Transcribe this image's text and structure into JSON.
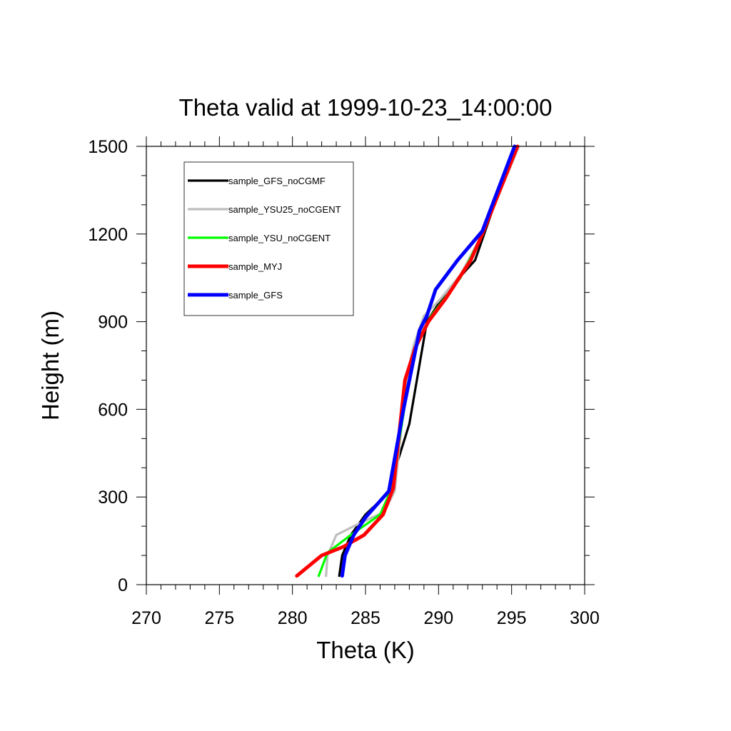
{
  "chart_data": {
    "type": "line",
    "title": "Theta valid at 1999-10-23_14:00:00",
    "xlabel": "Theta (K)",
    "ylabel": "Height (m)",
    "xlim": [
      270,
      300
    ],
    "ylim": [
      0,
      1500
    ],
    "x_ticks": [
      "270",
      "275",
      "280",
      "285",
      "290",
      "295",
      "300"
    ],
    "y_ticks": [
      "0",
      "300",
      "600",
      "900",
      "1200",
      "1500"
    ],
    "x_minor_step": 1,
    "y_minor_step": 100,
    "grid": false,
    "legend_position": "top-left",
    "series": [
      {
        "name": "sample_GFS_noCGMF",
        "color": "#000000",
        "x": [
          283.2,
          283.4,
          284.0,
          285.0,
          286.5,
          288.0,
          289.2,
          290.5,
          292.5,
          295.2
        ],
        "y": [
          30,
          100,
          170,
          240,
          310,
          550,
          900,
          1000,
          1110,
          1500
        ]
      },
      {
        "name": "sample_YSU25_noCGENT",
        "color": "#bebebe",
        "x": [
          282.3,
          282.4,
          283.0,
          284.2,
          286.3,
          287.0,
          287.8,
          288.3,
          289.0,
          290.0,
          291.5,
          293.0,
          295.5
        ],
        "y": [
          30,
          100,
          170,
          200,
          250,
          320,
          700,
          820,
          920,
          970,
          1060,
          1200,
          1500
        ]
      },
      {
        "name": "sample_YSU_noCGENT",
        "color": "#00ff00",
        "x": [
          281.8,
          282.4,
          284.0,
          286.0,
          286.8,
          287.9,
          288.5,
          289.5,
          291.5,
          293.0,
          295.4
        ],
        "y": [
          30,
          110,
          170,
          240,
          330,
          680,
          830,
          920,
          1050,
          1200,
          1500
        ]
      },
      {
        "name": "sample_MYJ",
        "color": "#ff0000",
        "x": [
          280.3,
          282.0,
          283.5,
          284.9,
          286.2,
          286.9,
          287.7,
          288.4,
          289.3,
          290.5,
          292.2,
          293.0,
          295.4
        ],
        "y": [
          30,
          100,
          130,
          170,
          240,
          330,
          700,
          810,
          900,
          980,
          1110,
          1200,
          1500
        ]
      },
      {
        "name": "sample_GFS",
        "color": "#0000ff",
        "x": [
          283.4,
          283.6,
          284.2,
          285.0,
          286.6,
          287.6,
          288.7,
          289.2,
          289.8,
          291.3,
          293.0,
          295.2
        ],
        "y": [
          30,
          100,
          170,
          230,
          320,
          600,
          870,
          920,
          1010,
          1110,
          1210,
          1500
        ]
      }
    ]
  }
}
